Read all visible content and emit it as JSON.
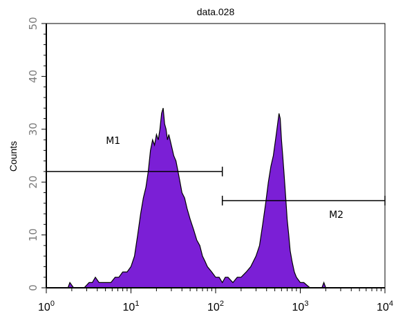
{
  "chart_data": {
    "type": "area",
    "title": "data.028",
    "xlabel": "",
    "ylabel": "Counts",
    "xscale": "log",
    "xlim": [
      1,
      10000
    ],
    "ylim": [
      0,
      50
    ],
    "x_ticks": [
      {
        "base": "10",
        "exp": "0"
      },
      {
        "base": "10",
        "exp": "1"
      },
      {
        "base": "10",
        "exp": "2"
      },
      {
        "base": "10",
        "exp": "3"
      },
      {
        "base": "10",
        "exp": "4"
      }
    ],
    "y_ticks": [
      "0",
      "10",
      "20",
      "30",
      "40",
      "50"
    ],
    "fill_color": "#7b1fd6",
    "outline_color": "#000000",
    "series": [
      {
        "x": [
          1,
          1.8,
          1.9,
          2.1,
          2.6,
          2.8,
          3.2,
          3.5,
          3.8,
          4.2,
          4.6,
          5.2,
          5.8,
          6.5,
          7.2,
          8.0,
          9.0,
          10,
          11,
          12,
          13,
          14,
          15,
          16,
          17,
          18,
          19,
          20,
          21,
          22,
          23,
          24,
          25,
          26,
          27,
          28,
          30,
          32,
          34,
          36,
          38,
          40,
          43,
          46,
          50,
          55,
          60,
          65,
          70,
          75,
          80,
          90,
          100,
          110,
          120,
          130,
          140,
          160,
          180,
          200,
          230,
          260,
          300,
          330,
          360,
          390,
          420,
          450,
          480,
          500,
          520,
          540,
          560,
          580,
          600,
          620,
          640,
          660,
          680,
          700,
          730,
          760,
          800,
          850,
          900,
          1000,
          1100,
          1300,
          1500,
          1700,
          1800,
          1900,
          2000,
          2100,
          10000
        ],
        "y": [
          0,
          0,
          1,
          0,
          0,
          0,
          1,
          1,
          2,
          1,
          1,
          1,
          1,
          2,
          2,
          3,
          3,
          4,
          6,
          10,
          14,
          17,
          19,
          22,
          26,
          28,
          27,
          29,
          28,
          30,
          33,
          34,
          31,
          30,
          28,
          29,
          27,
          25,
          24,
          22,
          20,
          18,
          17,
          15,
          13,
          11,
          9,
          8,
          6,
          5,
          4,
          3,
          2,
          2,
          1,
          2,
          2,
          1,
          2,
          2,
          3,
          4,
          6,
          8,
          12,
          16,
          20,
          23,
          25,
          27,
          29,
          31,
          33,
          32,
          28,
          25,
          22,
          19,
          16,
          13,
          10,
          7,
          5,
          3,
          2,
          1,
          1,
          0,
          0,
          0,
          0,
          1,
          0,
          0,
          0
        ]
      }
    ],
    "markers": [
      {
        "label": "M1",
        "start": 1,
        "end": 120,
        "level": 22
      },
      {
        "label": "M2",
        "start": 120,
        "end": 10000,
        "level": 16.5
      }
    ],
    "grid": false,
    "legend": "none"
  }
}
